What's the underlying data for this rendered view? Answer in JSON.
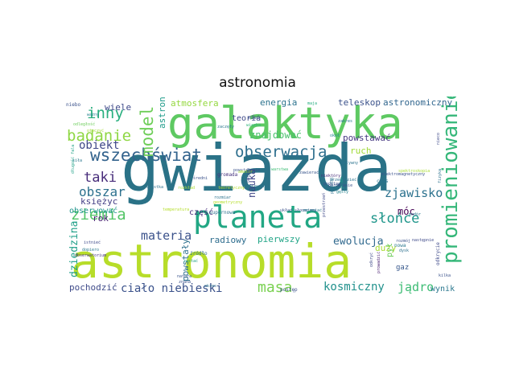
{
  "title": "astronomia",
  "words": [
    {
      "text": "gwiazda",
      "color": "#2a7287"
    },
    {
      "text": "astronomia",
      "color": "#b7dd29"
    },
    {
      "text": "galaktyka",
      "color": "#5ec962"
    },
    {
      "text": "planeta",
      "color": "#22a784"
    },
    {
      "text": "promieniowanie",
      "color": "#35b779"
    },
    {
      "text": "obserwacja",
      "color": "#2e6f8e"
    },
    {
      "text": "wszechświat",
      "color": "#33638d"
    },
    {
      "text": "badanie",
      "color": "#8fd744"
    },
    {
      "text": "inny",
      "color": "#29af7f"
    },
    {
      "text": "model",
      "color": "#6ece58"
    },
    {
      "text": "obiekt",
      "color": "#3f4788"
    },
    {
      "text": "materia",
      "color": "#3b528b"
    },
    {
      "text": "obszar",
      "color": "#2d718e"
    },
    {
      "text": "taki",
      "color": "#472c7a"
    },
    {
      "text": "ziemia",
      "color": "#54c568"
    },
    {
      "text": "słońce",
      "color": "#1f968b"
    },
    {
      "text": "zjawisko",
      "color": "#2c728e"
    },
    {
      "text": "masa",
      "color": "#7ad151"
    },
    {
      "text": "ciało niebieski",
      "color": "#3b528b"
    },
    {
      "text": "kosmiczny",
      "color": "#21918c"
    },
    {
      "text": "jądro",
      "color": "#3dbc74"
    },
    {
      "text": "ewolucja",
      "color": "#30698e"
    },
    {
      "text": "pierwszy",
      "color": "#20a486"
    },
    {
      "text": "radiowy",
      "color": "#2e6d8e"
    },
    {
      "text": "atmosfera",
      "color": "#95d840"
    },
    {
      "text": "astronom",
      "color": "#1e9b8a"
    },
    {
      "text": "energia",
      "color": "#2c738e"
    },
    {
      "text": "teleskop",
      "color": "#3b528b"
    },
    {
      "text": "astronomiczny",
      "color": "#31668e"
    },
    {
      "text": "powstawać",
      "color": "#453781"
    },
    {
      "text": "ruch",
      "color": "#a0da39"
    },
    {
      "text": "znajdować",
      "color": "#4ac16d"
    },
    {
      "text": "teoria",
      "color": "#3e4989"
    },
    {
      "text": "nauka",
      "color": "#404688"
    },
    {
      "text": "móc",
      "color": "#440154"
    },
    {
      "text": "duży",
      "color": "#a8db34"
    },
    {
      "text": "dziedzina",
      "color": "#1f9f88"
    },
    {
      "text": "powstały",
      "color": "#2d708e"
    },
    {
      "text": "pochodzić",
      "color": "#3e4a89"
    },
    {
      "text": "wynik",
      "color": "#2a778e"
    },
    {
      "text": "rok",
      "color": "#482173"
    },
    {
      "text": "obserwować",
      "color": "#1f958b"
    },
    {
      "text": "księżyc",
      "color": "#433e85"
    },
    {
      "text": "wiele",
      "color": "#3e4989"
    },
    {
      "text": "część",
      "color": "#472d7b"
    },
    {
      "text": "gaz",
      "color": "#38588c"
    },
    {
      "text": "pył",
      "color": "#6ccd5a"
    },
    {
      "text": "niebo",
      "color": "#3b528b"
    },
    {
      "text": "odległość",
      "color": "#6ccd5a"
    },
    {
      "text": "ważny",
      "color": "#26828e"
    },
    {
      "text": "otoczyć",
      "color": "#a2da37"
    },
    {
      "text": "długość fala",
      "color": "#1fa187"
    },
    {
      "text": "siła",
      "color": "#2a788e"
    },
    {
      "text": "wiązka",
      "color": "#31b57b"
    },
    {
      "text": "mieć",
      "color": "#3b528b"
    },
    {
      "text": "maja",
      "color": "#26ad81"
    },
    {
      "text": "zakres",
      "color": "#29798e"
    },
    {
      "text": "okoł",
      "color": "#24878e"
    },
    {
      "text": "warstwa",
      "color": "#3dbc74"
    },
    {
      "text": "zawierać",
      "color": "#39568c"
    },
    {
      "text": "niektóry",
      "color": "#472c7a"
    },
    {
      "text": "podstawa",
      "color": "#3b528b"
    },
    {
      "text": "gęsty",
      "color": "#25838e"
    },
    {
      "text": "czas",
      "color": "#2c738e"
    },
    {
      "text": "supernowa",
      "color": "#2c728e"
    },
    {
      "text": "układ słoneczny",
      "color": "#3b528b"
    },
    {
      "text": "zmieniać",
      "color": "#29798e"
    },
    {
      "text": "temperatura",
      "color": "#b5de2b"
    },
    {
      "text": "rozkład",
      "color": "#a8db34"
    },
    {
      "text": "cząstka",
      "color": "#2c728e"
    },
    {
      "text": "istnieć",
      "color": "#3e4989"
    },
    {
      "text": "dopiero",
      "color": "#2a788e"
    },
    {
      "text": "obserwatorium",
      "color": "#46327e"
    },
    {
      "text": "źródło",
      "color": "#2e6e8e"
    },
    {
      "text": "natura",
      "color": "#3a538b"
    },
    {
      "text": "znana",
      "color": "#3b528b"
    },
    {
      "text": "zostać",
      "color": "#1fa088"
    },
    {
      "text": "okres",
      "color": "#2c738e"
    },
    {
      "text": "postęp",
      "color": "#3b528b"
    },
    {
      "text": "odkryć",
      "color": "#3e4989"
    },
    {
      "text": "prowadzić",
      "color": "#481f70"
    },
    {
      "text": "dysk",
      "color": "#2d718e"
    },
    {
      "text": "rozmój",
      "color": "#3b528b"
    },
    {
      "text": "nowa",
      "color": "#2a788e"
    },
    {
      "text": "następnie",
      "color": "#3e4989"
    },
    {
      "text": "modór",
      "color": "#2a788e"
    },
    {
      "text": "kilka",
      "color": "#3b528b"
    },
    {
      "text": "odkrycie",
      "color": "#3e4989"
    },
    {
      "text": "powstać",
      "color": "#2c728e"
    },
    {
      "text": "gromada",
      "color": "#46327e"
    },
    {
      "text": "powstawanie",
      "color": "#3b528b"
    },
    {
      "text": "teoretyczny",
      "color": "#b5de2b"
    },
    {
      "text": "amator",
      "color": "#a8db34"
    },
    {
      "text": "przewidzieć",
      "color": "#2c728e"
    },
    {
      "text": "porównanie",
      "color": "#3b528b"
    },
    {
      "text": "przestrzeń",
      "color": "#3e4989"
    },
    {
      "text": "jeden",
      "color": "#1fa088"
    },
    {
      "text": "fizyczny",
      "color": "#2c728e"
    },
    {
      "text": "średni",
      "color": "#3b528b"
    },
    {
      "text": "zaczęły",
      "color": "#2a788e"
    },
    {
      "text": "obrazu",
      "color": "#3b528b"
    },
    {
      "text": "geometryczny",
      "color": "#b5de2b"
    },
    {
      "text": "rozmiar",
      "color": "#2c728e"
    },
    {
      "text": "nieco",
      "color": "#3e4989"
    },
    {
      "text": "aktywny",
      "color": "#2c738e"
    },
    {
      "text": "elektromagnetyczny",
      "color": "#3b528b"
    },
    {
      "text": "spektroskopia",
      "color": "#a8db34"
    },
    {
      "text": "fizyka",
      "color": "#2c728e"
    },
    {
      "text": "starożytny",
      "color": "#3e4989"
    }
  ]
}
